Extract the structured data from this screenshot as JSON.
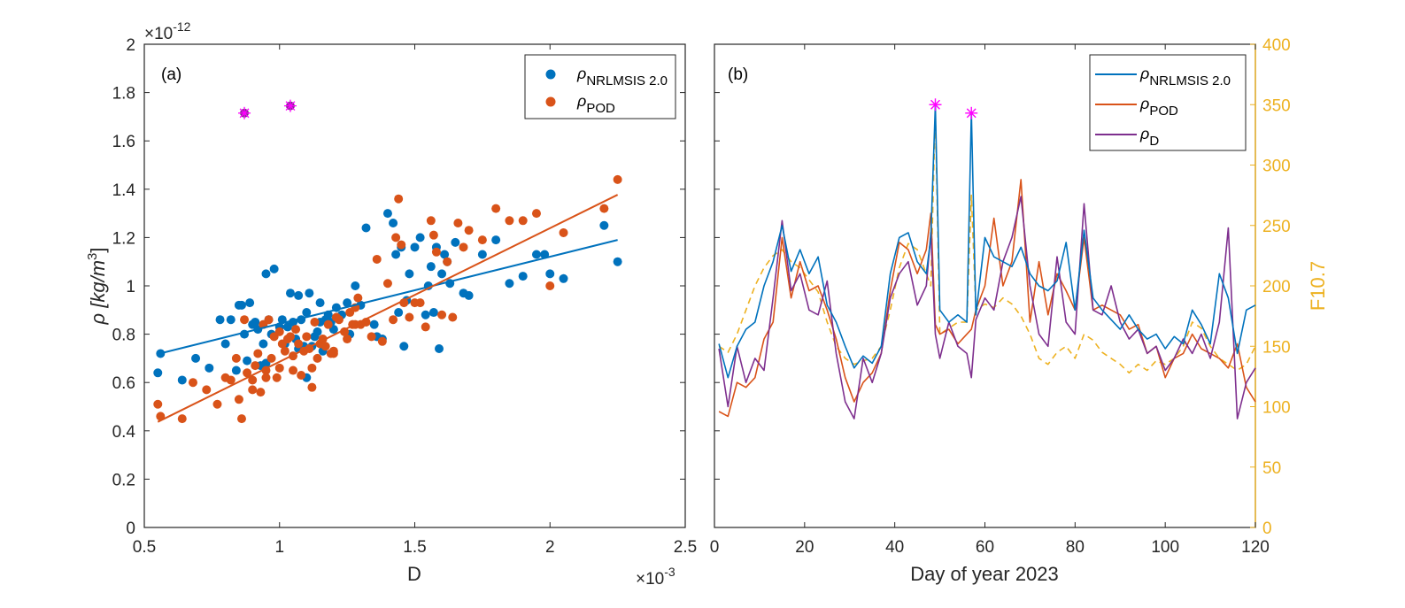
{
  "chart_data": [
    {
      "type": "scatter",
      "panel_label": "(a)",
      "xlabel": "D",
      "x_exponent_label": "×10",
      "x_exponent": "-3",
      "ylabel": "ρ [kg/m",
      "ylabel_sup": "3",
      "ylabel_close": "]",
      "y_exponent_label": "×10",
      "y_exponent": "-12",
      "xlim": [
        0.5,
        2.5
      ],
      "ylim": [
        0,
        2
      ],
      "x_ticks": [
        "0.5",
        "1",
        "1.5",
        "2",
        "2.5"
      ],
      "y_ticks": [
        "0",
        "0.2",
        "0.4",
        "0.6",
        "0.8",
        "1",
        "1.2",
        "1.4",
        "1.6",
        "1.8",
        "2"
      ],
      "legend_position": "top-right",
      "colors": {
        "nrlmsis": "#0072BD",
        "pod": "#D95319",
        "outlier": "#7E2F8E",
        "outlier_star": "#FF00FF"
      },
      "series": [
        {
          "name": "ρ",
          "sub": "NRLMSIS 2.0",
          "x": [
            0.55,
            0.56,
            0.64,
            0.69,
            0.74,
            0.78,
            0.8,
            0.82,
            0.84,
            0.86,
            0.87,
            0.88,
            0.89,
            0.9,
            0.91,
            0.92,
            0.93,
            0.94,
            0.95,
            0.96,
            0.97,
            0.98,
            1.0,
            1.01,
            1.02,
            1.03,
            1.04,
            1.05,
            1.06,
            1.07,
            1.08,
            1.09,
            1.1,
            1.1,
            1.11,
            1.12,
            1.13,
            1.14,
            1.15,
            1.16,
            1.17,
            1.18,
            1.19,
            1.2,
            1.21,
            1.23,
            1.25,
            1.26,
            1.28,
            1.3,
            1.32,
            1.35,
            1.36,
            1.38,
            1.4,
            1.42,
            1.43,
            1.44,
            1.45,
            1.46,
            1.47,
            1.48,
            1.5,
            1.52,
            1.54,
            1.55,
            1.56,
            1.57,
            1.58,
            1.59,
            1.6,
            1.61,
            1.62,
            1.63,
            1.65,
            1.68,
            1.7,
            1.75,
            1.8,
            1.85,
            1.9,
            1.95,
            1.98,
            2.0,
            2.05,
            2.2,
            2.25,
            1.07,
            1.15,
            0.85,
            0.95
          ],
          "y": [
            0.64,
            0.72,
            0.61,
            0.7,
            0.66,
            0.86,
            0.76,
            0.86,
            0.65,
            0.92,
            0.8,
            0.69,
            0.93,
            0.84,
            0.85,
            0.82,
            0.67,
            0.76,
            1.05,
            0.86,
            0.8,
            1.07,
            0.83,
            0.86,
            0.76,
            0.83,
            0.97,
            0.85,
            0.78,
            0.74,
            0.86,
            0.75,
            0.89,
            0.62,
            0.97,
            0.75,
            0.79,
            0.81,
            0.85,
            0.73,
            0.86,
            0.88,
            0.85,
            0.82,
            0.91,
            0.88,
            0.93,
            0.8,
            1.0,
            0.92,
            1.24,
            0.84,
            0.79,
            0.78,
            1.3,
            1.26,
            1.13,
            0.89,
            1.16,
            0.75,
            0.94,
            1.05,
            1.16,
            1.2,
            0.88,
            1.0,
            1.08,
            0.89,
            1.16,
            0.74,
            1.05,
            1.13,
            1.1,
            1.01,
            1.18,
            0.97,
            0.96,
            1.13,
            1.19,
            1.01,
            1.04,
            1.13,
            1.13,
            1.05,
            1.03,
            1.25,
            1.1,
            0.96,
            0.93,
            0.92,
            0.68
          ]
        },
        {
          "name": "ρ",
          "sub": "POD",
          "x": [
            0.55,
            0.56,
            0.64,
            0.68,
            0.73,
            0.77,
            0.8,
            0.82,
            0.84,
            0.86,
            0.87,
            0.88,
            0.9,
            0.91,
            0.92,
            0.93,
            0.94,
            0.95,
            0.96,
            0.97,
            0.98,
            0.99,
            1.0,
            1.01,
            1.02,
            1.03,
            1.04,
            1.05,
            1.06,
            1.07,
            1.08,
            1.09,
            1.1,
            1.11,
            1.12,
            1.13,
            1.14,
            1.15,
            1.16,
            1.17,
            1.18,
            1.19,
            1.2,
            1.21,
            1.22,
            1.24,
            1.25,
            1.26,
            1.27,
            1.28,
            1.29,
            1.3,
            1.32,
            1.34,
            1.36,
            1.38,
            1.4,
            1.42,
            1.43,
            1.44,
            1.45,
            1.46,
            1.48,
            1.5,
            1.52,
            1.54,
            1.56,
            1.57,
            1.58,
            1.6,
            1.62,
            1.64,
            1.66,
            1.68,
            1.7,
            1.75,
            1.8,
            1.85,
            1.9,
            1.95,
            2.0,
            2.05,
            2.2,
            2.25,
            0.85,
            0.9,
            0.95,
            1.0,
            1.05,
            1.12,
            1.2,
            1.28
          ],
          "y": [
            0.51,
            0.46,
            0.45,
            0.6,
            0.57,
            0.51,
            0.62,
            0.61,
            0.7,
            0.45,
            0.86,
            0.64,
            0.61,
            0.67,
            0.72,
            0.56,
            0.84,
            0.65,
            0.86,
            0.7,
            0.79,
            0.62,
            0.81,
            0.76,
            0.73,
            0.78,
            0.79,
            0.65,
            0.82,
            0.76,
            0.63,
            0.73,
            0.79,
            0.74,
            0.58,
            0.85,
            0.7,
            0.76,
            0.78,
            0.75,
            0.84,
            0.72,
            0.73,
            0.87,
            0.86,
            0.81,
            0.78,
            0.89,
            0.84,
            0.91,
            0.95,
            0.84,
            0.85,
            0.79,
            1.11,
            0.77,
            1.01,
            0.86,
            1.2,
            1.36,
            1.17,
            0.93,
            0.87,
            0.93,
            0.93,
            0.83,
            1.27,
            1.21,
            1.14,
            0.88,
            1.1,
            0.87,
            1.26,
            1.16,
            1.23,
            1.19,
            1.32,
            1.27,
            1.27,
            1.3,
            1.0,
            1.22,
            1.32,
            1.44,
            0.53,
            0.57,
            0.62,
            0.66,
            0.71,
            0.66,
            0.72,
            0.84
          ]
        }
      ],
      "fit_lines": [
        {
          "series": "NRLMSIS 2.0",
          "x": [
            0.55,
            2.25
          ],
          "y": [
            0.718,
            1.19
          ]
        },
        {
          "series": "POD",
          "x": [
            0.55,
            2.25
          ],
          "y": [
            0.437,
            1.377
          ]
        }
      ],
      "outliers": {
        "x": [
          0.87,
          1.04
        ],
        "y": [
          1.715,
          1.745
        ]
      }
    },
    {
      "type": "line",
      "panel_label": "(b)",
      "xlabel": "Day of year 2023",
      "y2label": "F10.7",
      "xlim": [
        0,
        120
      ],
      "ylim": [
        0,
        2
      ],
      "y2lim": [
        0,
        400
      ],
      "x_ticks": [
        "0",
        "20",
        "40",
        "60",
        "80",
        "100",
        "120"
      ],
      "y2_ticks": [
        "0",
        "50",
        "100",
        "150",
        "200",
        "250",
        "300",
        "350",
        "400"
      ],
      "legend_position": "top-right",
      "colors": {
        "nrlmsis": "#0072BD",
        "pod": "#D95319",
        "d": "#7E2F8E",
        "f107": "#EDB120",
        "star": "#FF00FF"
      },
      "series": [
        {
          "name": "ρ",
          "sub": "NRLMSIS 2.0",
          "x": [
            1,
            3,
            5,
            7,
            9,
            11,
            13,
            15,
            17,
            19,
            21,
            23,
            25,
            27,
            29,
            31,
            33,
            35,
            37,
            39,
            41,
            43,
            45,
            47,
            48,
            49,
            50,
            52,
            54,
            56,
            57,
            58,
            60,
            62,
            64,
            66,
            68,
            70,
            72,
            74,
            76,
            78,
            80,
            82,
            84,
            86,
            88,
            90,
            92,
            94,
            96,
            98,
            100,
            102,
            104,
            106,
            108,
            110,
            112,
            114,
            116,
            118,
            120
          ],
          "y": [
            0.76,
            0.62,
            0.75,
            0.82,
            0.85,
            1.0,
            1.1,
            1.25,
            1.06,
            1.15,
            1.05,
            1.12,
            0.92,
            0.85,
            0.75,
            0.66,
            0.71,
            0.68,
            0.75,
            1.05,
            1.2,
            1.22,
            1.1,
            1.05,
            1.2,
            1.75,
            0.9,
            0.85,
            0.88,
            0.85,
            1.72,
            0.88,
            1.2,
            1.12,
            1.1,
            1.08,
            1.16,
            1.05,
            1.0,
            0.98,
            1.02,
            1.18,
            0.9,
            1.23,
            0.95,
            0.9,
            0.86,
            0.82,
            0.88,
            0.82,
            0.78,
            0.8,
            0.74,
            0.79,
            0.76,
            0.9,
            0.84,
            0.76,
            1.05,
            0.95,
            0.72,
            0.9,
            0.92
          ]
        },
        {
          "name": "ρ",
          "sub": "POD",
          "x": [
            1,
            3,
            5,
            7,
            9,
            11,
            13,
            15,
            17,
            19,
            21,
            23,
            25,
            27,
            29,
            31,
            33,
            35,
            37,
            39,
            41,
            43,
            45,
            47,
            48,
            49,
            50,
            52,
            54,
            56,
            57,
            58,
            60,
            62,
            64,
            66,
            68,
            70,
            72,
            74,
            76,
            78,
            80,
            82,
            84,
            86,
            88,
            90,
            92,
            94,
            96,
            98,
            100,
            102,
            104,
            106,
            108,
            110,
            112,
            114,
            116,
            118,
            120
          ],
          "y": [
            0.48,
            0.46,
            0.6,
            0.58,
            0.62,
            0.78,
            0.85,
            1.2,
            0.95,
            1.1,
            0.98,
            1.0,
            0.9,
            0.78,
            0.62,
            0.52,
            0.6,
            0.64,
            0.72,
            0.98,
            1.18,
            1.15,
            1.05,
            1.15,
            1.3,
            0.84,
            0.8,
            0.82,
            0.76,
            0.8,
            0.82,
            0.9,
            1.0,
            1.28,
            1.0,
            1.1,
            1.44,
            0.85,
            1.1,
            0.88,
            1.05,
            0.98,
            0.9,
            1.2,
            0.9,
            0.92,
            0.9,
            0.88,
            0.82,
            0.84,
            0.72,
            0.75,
            0.62,
            0.7,
            0.72,
            0.8,
            0.74,
            0.72,
            0.7,
            0.66,
            0.76,
            0.58,
            0.52
          ]
        },
        {
          "name": "ρ",
          "sub": "D",
          "x": [
            1,
            3,
            5,
            7,
            9,
            11,
            13,
            15,
            17,
            19,
            21,
            23,
            25,
            27,
            29,
            31,
            33,
            35,
            37,
            39,
            41,
            43,
            45,
            47,
            48,
            49,
            50,
            52,
            54,
            56,
            57,
            58,
            60,
            62,
            64,
            66,
            68,
            70,
            72,
            74,
            76,
            78,
            80,
            82,
            84,
            86,
            88,
            90,
            92,
            94,
            96,
            98,
            100,
            102,
            104,
            106,
            108,
            110,
            112,
            114,
            116,
            118,
            120
          ],
          "y": [
            0.74,
            0.5,
            0.75,
            0.6,
            0.7,
            0.65,
            0.95,
            1.27,
            0.98,
            1.05,
            0.9,
            0.88,
            1.02,
            0.72,
            0.52,
            0.45,
            0.7,
            0.6,
            0.72,
            0.95,
            1.05,
            1.1,
            0.92,
            1.0,
            1.22,
            0.8,
            0.7,
            0.85,
            0.75,
            0.72,
            0.62,
            0.86,
            0.95,
            0.9,
            1.1,
            1.2,
            1.37,
            1.0,
            0.8,
            0.75,
            1.12,
            0.85,
            0.8,
            1.34,
            0.9,
            0.88,
            1.0,
            0.85,
            0.78,
            0.82,
            0.72,
            0.75,
            0.65,
            0.7,
            0.78,
            0.72,
            0.8,
            0.7,
            0.85,
            1.24,
            0.45,
            0.6,
            0.66
          ]
        },
        {
          "name": "F10.7",
          "axis": "right",
          "style": "dashed",
          "x": [
            1,
            3,
            5,
            7,
            9,
            11,
            13,
            15,
            17,
            19,
            21,
            23,
            25,
            27,
            29,
            31,
            33,
            35,
            37,
            39,
            41,
            43,
            45,
            47,
            48,
            49,
            50,
            52,
            54,
            56,
            57,
            58,
            60,
            62,
            64,
            66,
            68,
            70,
            72,
            74,
            76,
            78,
            80,
            82,
            84,
            86,
            88,
            90,
            92,
            94,
            96,
            98,
            100,
            102,
            104,
            106,
            108,
            110,
            112,
            114,
            116,
            118,
            120
          ],
          "y": [
            150,
            145,
            160,
            180,
            200,
            215,
            225,
            230,
            220,
            215,
            205,
            195,
            170,
            150,
            140,
            135,
            138,
            140,
            150,
            180,
            215,
            235,
            230,
            210,
            200,
            345,
            160,
            165,
            170,
            170,
            275,
            180,
            185,
            182,
            190,
            185,
            175,
            160,
            140,
            135,
            145,
            150,
            140,
            160,
            155,
            145,
            140,
            135,
            128,
            135,
            130,
            138,
            135,
            140,
            150,
            170,
            165,
            150,
            140,
            135,
            130,
            135,
            150
          ]
        }
      ],
      "peak_markers": {
        "x": [
          49,
          57
        ],
        "y": [
          1.75,
          1.715
        ]
      }
    }
  ]
}
